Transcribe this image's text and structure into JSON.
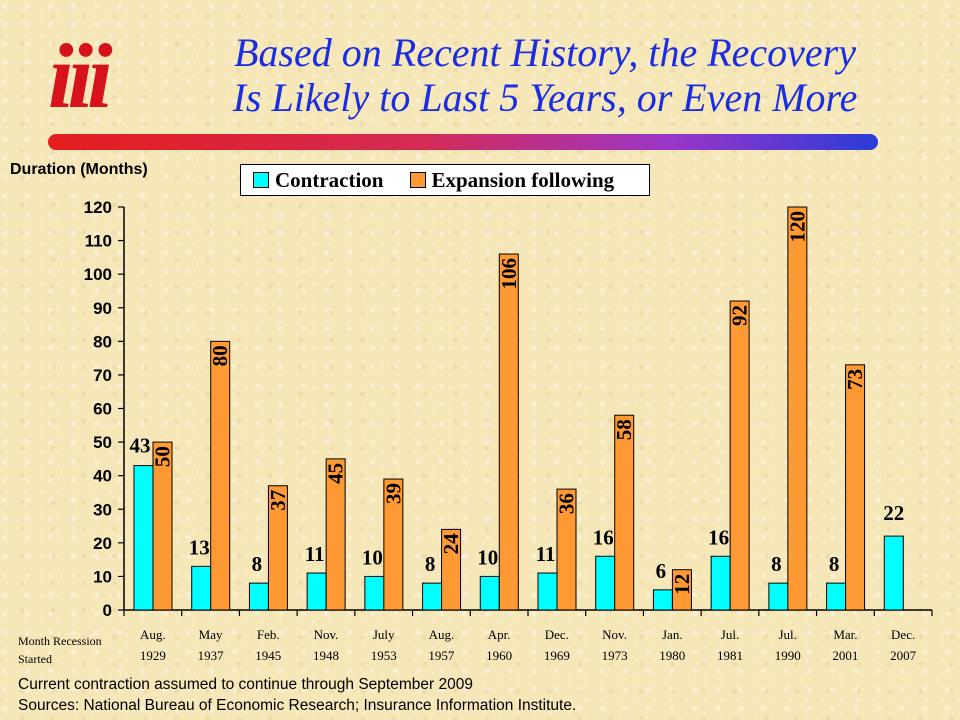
{
  "header": {
    "logo_text": "iii",
    "title_line1": "Based on Recent History, the Recovery",
    "title_line2": "Is Likely to Last 5 Years, or Even More"
  },
  "colors": {
    "contraction": "#00ffff",
    "expansion": "#ff9933",
    "title": "#1b2de0",
    "logo": "#d6131a"
  },
  "chart_data": {
    "type": "bar",
    "ylabel": "Duration (Months)",
    "xlabel": "Month Recession Started",
    "ylim": [
      0,
      120
    ],
    "yticks": [
      0,
      10,
      20,
      30,
      40,
      50,
      60,
      70,
      80,
      90,
      100,
      110,
      120
    ],
    "categories": [
      [
        "Aug.",
        "1929"
      ],
      [
        "May",
        "1937"
      ],
      [
        "Feb.",
        "1945"
      ],
      [
        "Nov.",
        "1948"
      ],
      [
        "July",
        "1953"
      ],
      [
        "Aug.",
        "1957"
      ],
      [
        "Apr.",
        "1960"
      ],
      [
        "Dec.",
        "1969"
      ],
      [
        "Nov.",
        "1973"
      ],
      [
        "Jan.",
        "1980"
      ],
      [
        "Jul.",
        "1981"
      ],
      [
        "Jul.",
        "1990"
      ],
      [
        "Mar.",
        "2001"
      ],
      [
        "Dec.",
        "2007"
      ]
    ],
    "series": [
      {
        "name": "Contraction",
        "values": [
          43,
          13,
          8,
          11,
          10,
          8,
          10,
          11,
          16,
          6,
          16,
          8,
          8,
          22
        ]
      },
      {
        "name": "Expansion following",
        "values": [
          50,
          80,
          37,
          45,
          39,
          24,
          106,
          36,
          58,
          12,
          92,
          120,
          73,
          null
        ]
      }
    ],
    "legend_position": "top"
  },
  "notes": {
    "assumption": "Current contraction assumed to continue through September 2009",
    "sources": "Sources: National Bureau of Economic Research; Insurance Information Institute."
  }
}
